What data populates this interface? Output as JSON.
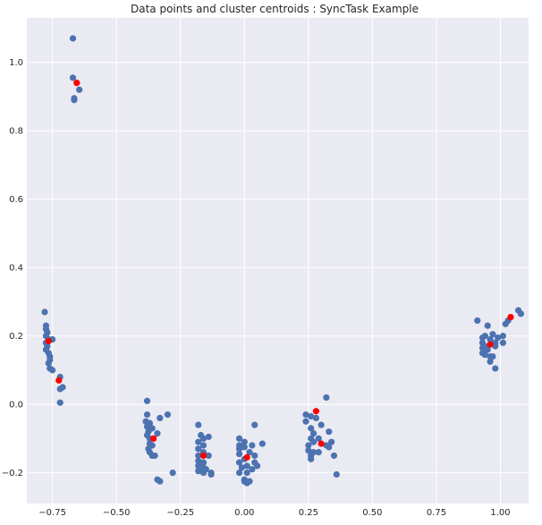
{
  "chart_data": {
    "type": "scatter",
    "title": "Data points and cluster centroids : SyncTask Example",
    "xlabel": "",
    "ylabel": "",
    "xlim": [
      -0.85,
      1.11
    ],
    "ylim": [
      -0.29,
      1.13
    ],
    "xticks": [
      -0.75,
      -0.5,
      -0.25,
      0.0,
      0.25,
      0.5,
      0.75,
      1.0
    ],
    "xtick_labels": [
      "−0.75",
      "−0.50",
      "−0.25",
      "0.00",
      "0.25",
      "0.50",
      "0.75",
      "1.00"
    ],
    "yticks": [
      -0.2,
      0.0,
      0.2,
      0.4,
      0.6,
      0.8,
      1.0
    ],
    "ytick_labels": [
      "−0.2",
      "0.0",
      "0.2",
      "0.4",
      "0.6",
      "0.8",
      "1.0"
    ],
    "grid": true,
    "background": "#eaeaf2",
    "colors": {
      "points": "#4c72b0",
      "centroids": "#ff0000",
      "grid": "#ffffff"
    },
    "series": [
      {
        "role": "data-points",
        "points": [
          [
            -0.67,
            1.07
          ],
          [
            -0.67,
            0.955
          ],
          [
            -0.645,
            0.92
          ],
          [
            -0.665,
            0.895
          ],
          [
            -0.665,
            0.89
          ],
          [
            -0.78,
            0.27
          ],
          [
            -0.775,
            0.23
          ],
          [
            -0.775,
            0.22
          ],
          [
            -0.77,
            0.21
          ],
          [
            -0.775,
            0.2
          ],
          [
            -0.765,
            0.19
          ],
          [
            -0.75,
            0.19
          ],
          [
            -0.775,
            0.18
          ],
          [
            -0.77,
            0.17
          ],
          [
            -0.775,
            0.16
          ],
          [
            -0.765,
            0.15
          ],
          [
            -0.76,
            0.14
          ],
          [
            -0.76,
            0.13
          ],
          [
            -0.765,
            0.12
          ],
          [
            -0.76,
            0.105
          ],
          [
            -0.75,
            0.1
          ],
          [
            -0.72,
            0.08
          ],
          [
            -0.71,
            0.05
          ],
          [
            -0.72,
            0.045
          ],
          [
            -0.72,
            0.005
          ],
          [
            -0.38,
            0.01
          ],
          [
            -0.38,
            -0.03
          ],
          [
            -0.3,
            -0.03
          ],
          [
            -0.33,
            -0.04
          ],
          [
            -0.385,
            -0.05
          ],
          [
            -0.37,
            -0.055
          ],
          [
            -0.38,
            -0.065
          ],
          [
            -0.36,
            -0.07
          ],
          [
            -0.375,
            -0.08
          ],
          [
            -0.34,
            -0.085
          ],
          [
            -0.38,
            -0.09
          ],
          [
            -0.37,
            -0.1
          ],
          [
            -0.37,
            -0.115
          ],
          [
            -0.36,
            -0.12
          ],
          [
            -0.375,
            -0.13
          ],
          [
            -0.37,
            -0.14
          ],
          [
            -0.35,
            -0.15
          ],
          [
            -0.36,
            -0.15
          ],
          [
            -0.28,
            -0.2
          ],
          [
            -0.34,
            -0.22
          ],
          [
            -0.33,
            -0.225
          ],
          [
            -0.18,
            -0.06
          ],
          [
            -0.17,
            -0.09
          ],
          [
            -0.14,
            -0.095
          ],
          [
            -0.16,
            -0.1
          ],
          [
            -0.18,
            -0.11
          ],
          [
            -0.16,
            -0.12
          ],
          [
            -0.18,
            -0.13
          ],
          [
            -0.16,
            -0.14
          ],
          [
            -0.18,
            -0.15
          ],
          [
            -0.14,
            -0.15
          ],
          [
            -0.18,
            -0.165
          ],
          [
            -0.16,
            -0.17
          ],
          [
            -0.18,
            -0.18
          ],
          [
            -0.16,
            -0.185
          ],
          [
            -0.15,
            -0.19
          ],
          [
            -0.18,
            -0.195
          ],
          [
            -0.16,
            -0.2
          ],
          [
            -0.13,
            -0.2
          ],
          [
            -0.13,
            -0.205
          ],
          [
            -0.02,
            -0.1
          ],
          [
            0.04,
            -0.06
          ],
          [
            0.0,
            -0.11
          ],
          [
            -0.02,
            -0.12
          ],
          [
            0.03,
            -0.12
          ],
          [
            0.07,
            -0.115
          ],
          [
            0.0,
            -0.125
          ],
          [
            -0.02,
            -0.13
          ],
          [
            0.02,
            -0.14
          ],
          [
            -0.02,
            -0.145
          ],
          [
            0.04,
            -0.15
          ],
          [
            0.0,
            -0.16
          ],
          [
            -0.02,
            -0.17
          ],
          [
            0.04,
            -0.17
          ],
          [
            0.01,
            -0.18
          ],
          [
            -0.01,
            -0.185
          ],
          [
            0.05,
            -0.18
          ],
          [
            0.03,
            -0.19
          ],
          [
            0.01,
            -0.2
          ],
          [
            -0.02,
            -0.2
          ],
          [
            0.0,
            -0.22
          ],
          [
            0.0,
            -0.225
          ],
          [
            0.02,
            -0.225
          ],
          [
            0.01,
            -0.23
          ],
          [
            0.32,
            0.02
          ],
          [
            0.24,
            -0.03
          ],
          [
            0.26,
            -0.035
          ],
          [
            0.28,
            -0.04
          ],
          [
            0.24,
            -0.05
          ],
          [
            0.3,
            -0.06
          ],
          [
            0.26,
            -0.07
          ],
          [
            0.33,
            -0.08
          ],
          [
            0.27,
            -0.085
          ],
          [
            0.26,
            -0.1
          ],
          [
            0.29,
            -0.1
          ],
          [
            0.27,
            -0.11
          ],
          [
            0.32,
            -0.12
          ],
          [
            0.34,
            -0.11
          ],
          [
            0.25,
            -0.12
          ],
          [
            0.33,
            -0.125
          ],
          [
            0.25,
            -0.135
          ],
          [
            0.27,
            -0.14
          ],
          [
            0.26,
            -0.15
          ],
          [
            0.29,
            -0.14
          ],
          [
            0.35,
            -0.15
          ],
          [
            0.26,
            -0.16
          ],
          [
            0.36,
            -0.205
          ],
          [
            1.07,
            0.275
          ],
          [
            1.08,
            0.265
          ],
          [
            1.03,
            0.245
          ],
          [
            1.02,
            0.235
          ],
          [
            0.91,
            0.245
          ],
          [
            0.95,
            0.23
          ],
          [
            0.94,
            0.2
          ],
          [
            0.97,
            0.205
          ],
          [
            0.93,
            0.195
          ],
          [
            0.96,
            0.19
          ],
          [
            0.99,
            0.195
          ],
          [
            1.01,
            0.2
          ],
          [
            0.93,
            0.18
          ],
          [
            0.98,
            0.18
          ],
          [
            1.01,
            0.18
          ],
          [
            0.95,
            0.17
          ],
          [
            0.93,
            0.165
          ],
          [
            0.98,
            0.17
          ],
          [
            0.95,
            0.16
          ],
          [
            0.93,
            0.15
          ],
          [
            0.94,
            0.145
          ],
          [
            0.96,
            0.14
          ],
          [
            0.97,
            0.14
          ],
          [
            0.96,
            0.125
          ],
          [
            0.98,
            0.105
          ]
        ]
      },
      {
        "role": "centroids",
        "points": [
          [
            -0.655,
            0.94
          ],
          [
            -0.765,
            0.185
          ],
          [
            -0.725,
            0.07
          ],
          [
            -0.355,
            -0.1
          ],
          [
            -0.16,
            -0.15
          ],
          [
            0.01,
            -0.155
          ],
          [
            0.28,
            -0.02
          ],
          [
            0.3,
            -0.115
          ],
          [
            1.04,
            0.255
          ],
          [
            0.96,
            0.175
          ]
        ]
      }
    ]
  }
}
